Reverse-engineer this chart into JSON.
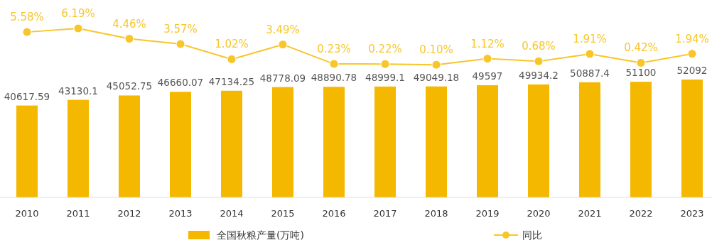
{
  "chart_data": [
    {
      "type": "line",
      "categories": [
        null,
        null,
        null,
        null,
        null,
        null,
        null,
        null,
        null,
        null,
        null,
        null,
        null,
        null
      ],
      "series": [
        {
          "name": "同比",
          "color": "#f8c62a",
          "values": [
            5.58,
            6.19,
            4.46,
            3.57,
            1.02,
            3.49,
            0.23,
            0.22,
            0.1,
            1.12,
            0.68,
            1.91,
            0.42,
            1.94
          ],
          "value_labels": [
            "5.58%",
            "6.19%",
            "4.46%",
            "3.57%",
            "1.02%",
            "3.49%",
            "0.23%",
            "0.22%",
            "0.10%",
            "1.12%",
            "0.68%",
            "1.91%",
            "0.42%",
            "1.94%"
          ]
        }
      ],
      "tick_labels": false,
      "marker": "circle",
      "legend": "bottom"
    },
    {
      "type": "bar",
      "categories": [
        "2010",
        "2011",
        "2012",
        "2013",
        "2014",
        "2015",
        "2016",
        "2017",
        "2018",
        "2019",
        "2020",
        "2021",
        "2022",
        "2023"
      ],
      "series": [
        {
          "name": "全国秋粮产量(万吨)",
          "color": "#f5b800",
          "values": [
            40617.59,
            43130.1,
            45052.75,
            46660.07,
            47134.25,
            48778.09,
            48890.78,
            48999.1,
            49049.18,
            49597,
            49934.2,
            50887.4,
            51100,
            52092
          ]
        }
      ],
      "tick_labels": "x",
      "data_labels": true,
      "legend": "bottom"
    }
  ]
}
